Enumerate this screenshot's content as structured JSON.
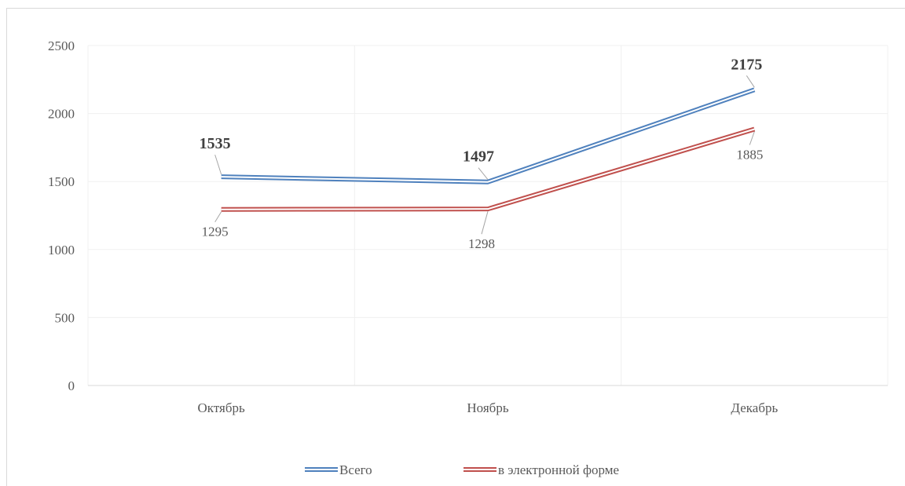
{
  "chart_data": {
    "type": "line",
    "title": "",
    "xlabel": "",
    "ylabel": "",
    "categories": [
      "Октябрь",
      "Ноябрь",
      "Декабрь"
    ],
    "ylim": [
      0,
      2500
    ],
    "yticks": [
      0,
      500,
      1000,
      1500,
      2000,
      2500
    ],
    "grid": true,
    "legend": "bottom",
    "series": [
      {
        "name": "Всего",
        "values": [
          1535,
          1497,
          2175
        ],
        "labels": [
          "1535",
          "1497",
          "2175"
        ],
        "color": "#4f81bd",
        "label_bold": true
      },
      {
        "name": "в электронной форме",
        "values": [
          1295,
          1298,
          1885
        ],
        "labels": [
          "1295",
          "1298",
          "1885"
        ],
        "color": "#c0504d",
        "label_bold": false
      }
    ]
  }
}
